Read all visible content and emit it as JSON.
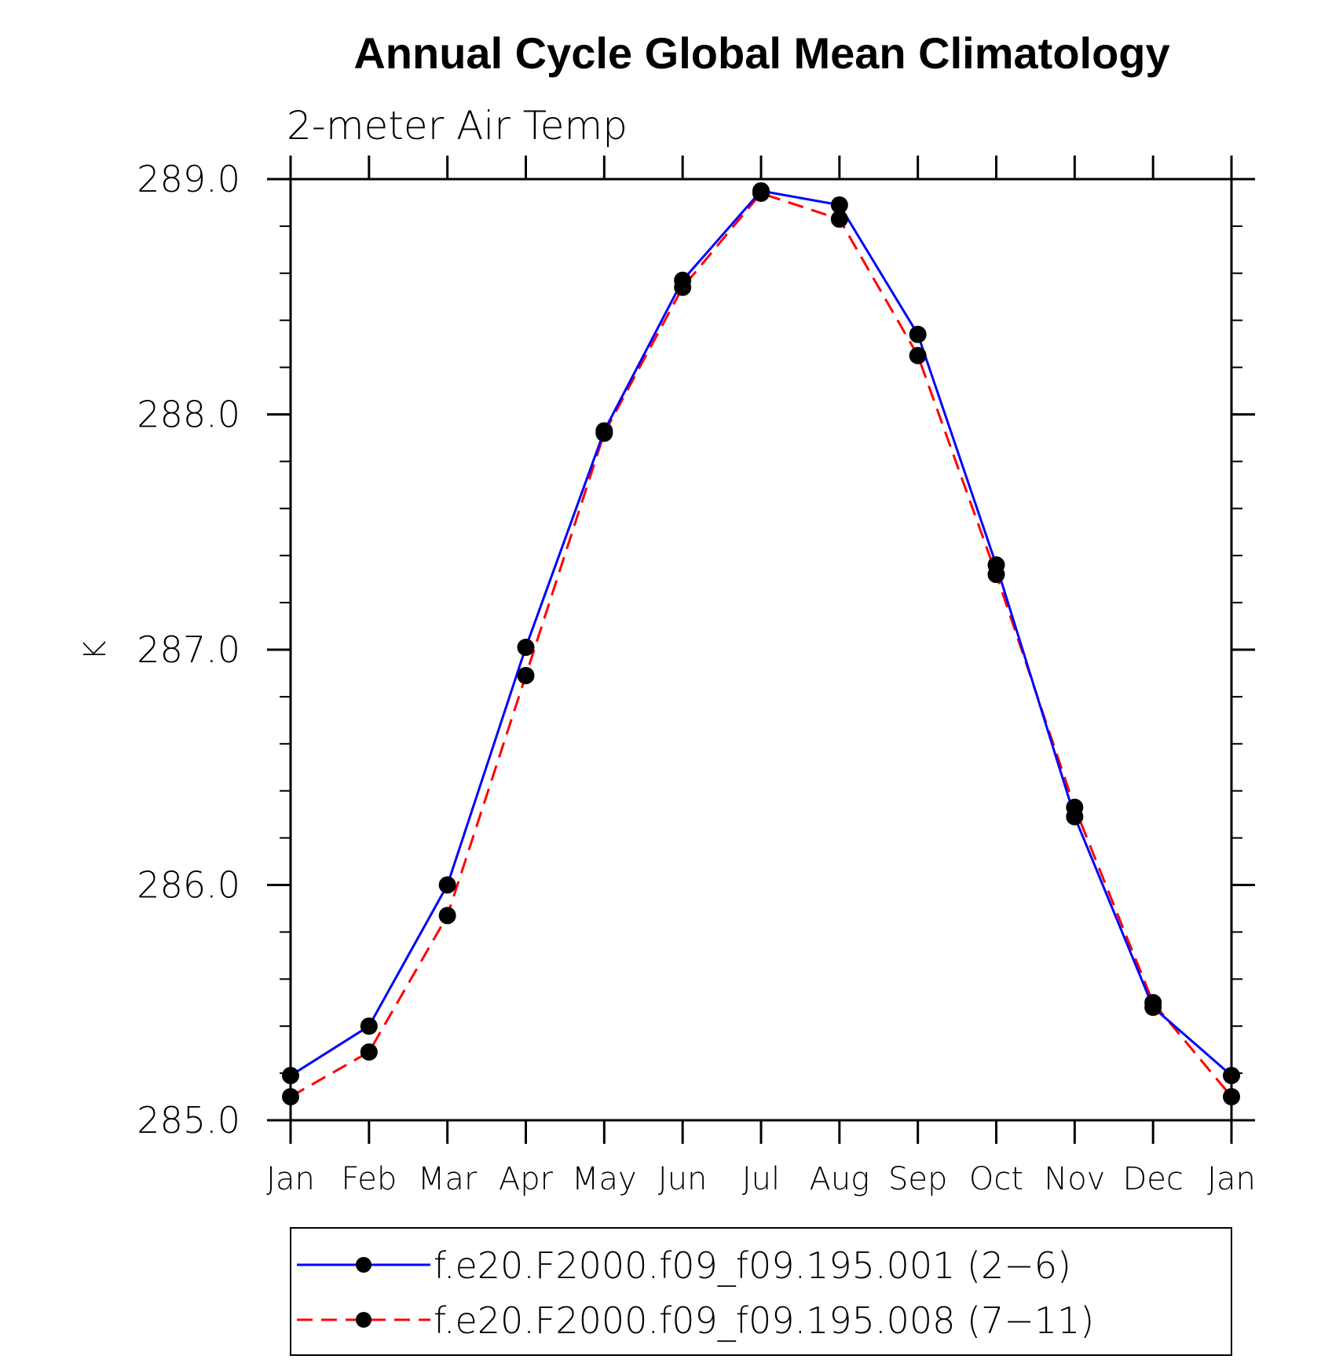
{
  "chart_data": {
    "type": "line",
    "title": "Annual Cycle Global Mean Climatology",
    "subtitle": "2-meter Air Temp",
    "xlabel": "",
    "ylabel": "K",
    "categories": [
      "Jan",
      "Feb",
      "Mar",
      "Apr",
      "May",
      "Jun",
      "Jul",
      "Aug",
      "Sep",
      "Oct",
      "Nov",
      "Dec",
      "Jan"
    ],
    "ylim": [
      285.0,
      289.0
    ],
    "yticks": [
      285.0,
      286.0,
      287.0,
      288.0,
      289.0
    ],
    "ytick_labels": [
      "285.0",
      "286.0",
      "287.0",
      "288.0",
      "289.0"
    ],
    "yminor_step": 0.2,
    "grid": false,
    "legend_position": "bottom",
    "series": [
      {
        "name": "f.e20.F2000.f09_f09.195.001 (2−6)",
        "color": "#0000ff",
        "line_style": "solid",
        "marker": "filled-circle",
        "values": [
          285.19,
          285.4,
          286.0,
          287.01,
          287.93,
          288.57,
          288.95,
          288.89,
          288.34,
          287.36,
          286.29,
          285.48,
          285.19
        ]
      },
      {
        "name": "f.e20.F2000.f09_f09.195.008 (7−11)",
        "color": "#ff0000",
        "line_style": "dashed",
        "marker": "filled-circle",
        "values": [
          285.1,
          285.29,
          285.87,
          286.89,
          287.92,
          288.54,
          288.94,
          288.83,
          288.25,
          287.32,
          286.33,
          285.5,
          285.1
        ]
      }
    ]
  }
}
